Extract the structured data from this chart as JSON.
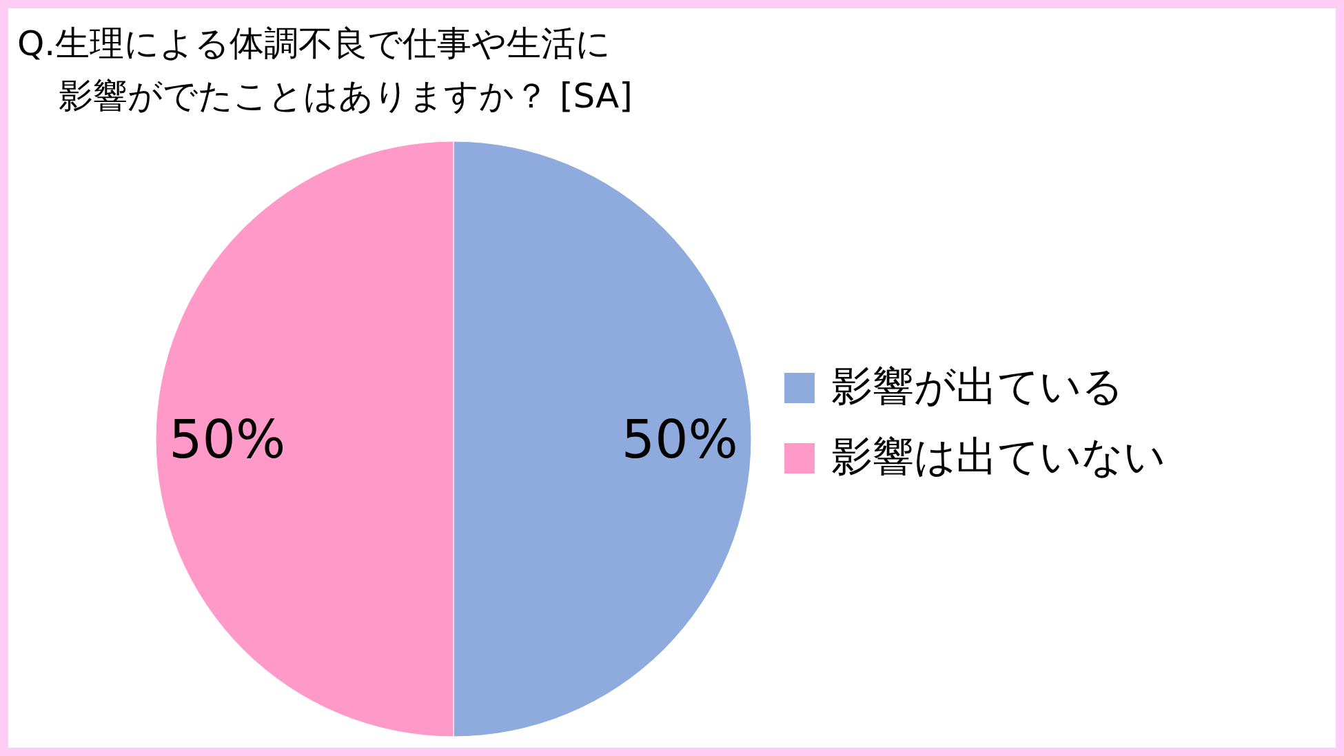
{
  "chart_data": {
    "type": "pie",
    "title": "Q.生理による体調不良で仕事や生活に影響がでたことはありますか？ [SA]",
    "categories": [
      "影響が出ている",
      "影響は出ていない"
    ],
    "values": [
      50,
      50
    ],
    "colors": [
      "#8faadc",
      "#ff99c8"
    ],
    "value_labels": [
      "50%",
      "50%"
    ],
    "legend": "right"
  }
}
